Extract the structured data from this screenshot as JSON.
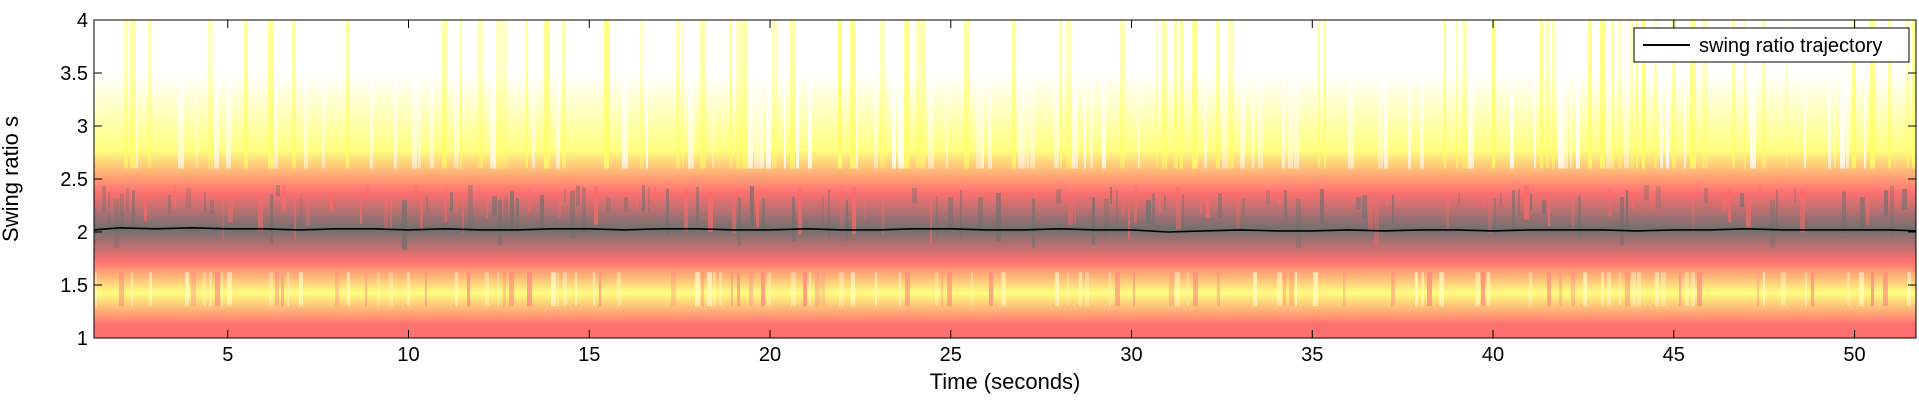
{
  "chart_data": {
    "type": "heatmap",
    "xlabel": "Time (seconds)",
    "ylabel": "Swing ratio s",
    "xlim": [
      1.3,
      51.7
    ],
    "ylim": [
      1,
      4
    ],
    "x_ticks": [
      5,
      10,
      15,
      20,
      25,
      30,
      35,
      40,
      45,
      50
    ],
    "y_ticks": [
      1,
      1.5,
      2,
      2.5,
      3,
      3.5,
      4
    ],
    "x_tick_labels": [
      "5",
      "10",
      "15",
      "20",
      "25",
      "30",
      "35",
      "40",
      "45",
      "50"
    ],
    "y_tick_labels": [
      "1",
      "1.5",
      "2",
      "2.5",
      "3",
      "3.5",
      "4"
    ],
    "grid": false,
    "legend": {
      "position": "top-right",
      "entries": [
        {
          "label": "swing ratio trajectory",
          "color": "#000000"
        }
      ]
    },
    "colormap": {
      "low": "#ffffff",
      "low_mid": "#ffff80",
      "mid": "#ff7070",
      "high": "#707070"
    },
    "heatmap_bands": [
      {
        "y_range": [
          1.0,
          1.25
        ],
        "level": "mid"
      },
      {
        "y_range": [
          1.25,
          1.6
        ],
        "level": "low_mid"
      },
      {
        "y_range": [
          1.6,
          1.85
        ],
        "level": "mid"
      },
      {
        "y_range": [
          1.85,
          2.2
        ],
        "level": "high"
      },
      {
        "y_range": [
          2.2,
          2.55
        ],
        "level": "mid"
      },
      {
        "y_range": [
          2.55,
          3.0
        ],
        "level": "low_mid"
      },
      {
        "y_range": [
          3.0,
          4.0
        ],
        "level": "low"
      }
    ],
    "series": [
      {
        "name": "swing ratio trajectory",
        "color": "#000000",
        "x": [
          1.3,
          2.0,
          3.0,
          4.0,
          5.0,
          6.0,
          7.0,
          8.0,
          9.0,
          10.0,
          11.0,
          12.0,
          13.0,
          14.0,
          15.0,
          16.0,
          17.0,
          18.0,
          19.0,
          20.0,
          21.0,
          22.0,
          23.0,
          24.0,
          25.0,
          26.0,
          27.0,
          28.0,
          29.0,
          30.0,
          31.0,
          32.0,
          33.0,
          34.0,
          35.0,
          36.0,
          37.0,
          38.0,
          39.0,
          40.0,
          41.0,
          42.0,
          43.0,
          44.0,
          45.0,
          46.0,
          47.0,
          48.0,
          49.0,
          50.0,
          51.0,
          51.7
        ],
        "y": [
          2.02,
          2.04,
          2.03,
          2.04,
          2.03,
          2.03,
          2.02,
          2.03,
          2.03,
          2.02,
          2.03,
          2.02,
          2.02,
          2.03,
          2.03,
          2.02,
          2.03,
          2.03,
          2.02,
          2.02,
          2.03,
          2.02,
          2.02,
          2.03,
          2.03,
          2.02,
          2.02,
          2.03,
          2.02,
          2.02,
          2.0,
          2.01,
          2.02,
          2.01,
          2.01,
          2.02,
          2.01,
          2.02,
          2.02,
          2.01,
          2.02,
          2.02,
          2.02,
          2.01,
          2.02,
          2.02,
          2.03,
          2.02,
          2.02,
          2.02,
          2.02,
          2.01
        ]
      }
    ]
  }
}
